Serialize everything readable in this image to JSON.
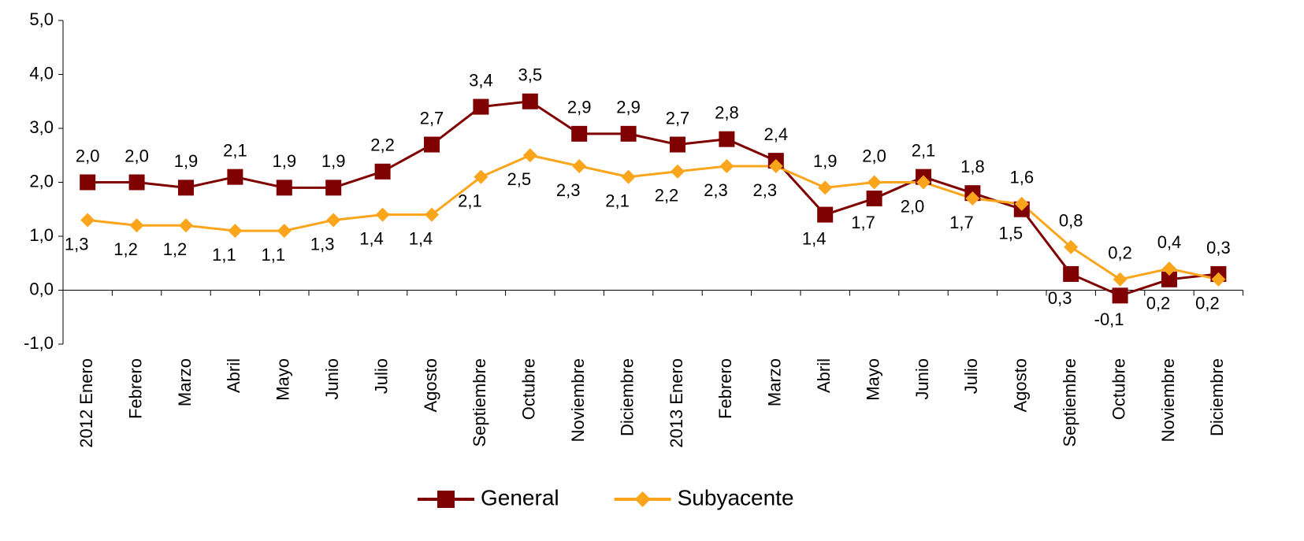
{
  "chart_data": {
    "type": "line",
    "categories": [
      "2012 Enero",
      "Febrero",
      "Marzo",
      "Abril",
      "Mayo",
      "Junio",
      "Julio",
      "Agosto",
      "Septiembre",
      "Octubre",
      "Noviembre",
      "Diciembre",
      "2013 Enero",
      "Febrero",
      "Marzo",
      "Abril",
      "Mayo",
      "Junio",
      "Julio",
      "Agosto",
      "Septiembre",
      "Octubre",
      "Noviembre",
      "Diciembre"
    ],
    "series": [
      {
        "name": "General",
        "color": "#7f0000",
        "marker": "square",
        "values": [
          2.0,
          2.0,
          1.9,
          2.1,
          1.9,
          1.9,
          2.2,
          2.7,
          3.4,
          3.5,
          2.9,
          2.9,
          2.7,
          2.8,
          2.4,
          1.4,
          1.7,
          2.1,
          1.8,
          1.5,
          0.3,
          -0.1,
          0.2,
          0.3
        ],
        "value_labels": [
          "2,0",
          "2,0",
          "1,9",
          "2,1",
          "1,9",
          "1,9",
          "2,2",
          "2,7",
          "3,4",
          "3,5",
          "2,9",
          "2,9",
          "2,7",
          "2,8",
          "2,4",
          "1,4",
          "1,7",
          "2,1",
          "1,8",
          "1,5",
          "0,3",
          "-0,1",
          "0,2",
          "0,3"
        ]
      },
      {
        "name": "Subyacente",
        "color": "#fba51c",
        "marker": "diamond",
        "values": [
          1.3,
          1.2,
          1.2,
          1.1,
          1.1,
          1.3,
          1.4,
          1.4,
          2.1,
          2.5,
          2.3,
          2.1,
          2.2,
          2.3,
          2.3,
          1.9,
          2.0,
          2.0,
          1.7,
          1.6,
          0.8,
          0.2,
          0.4,
          0.2
        ],
        "value_labels": [
          "1,3",
          "1,2",
          "1,2",
          "1,1",
          "1,1",
          "1,3",
          "1,4",
          "1,4",
          "2,1",
          "2,5",
          "2,3",
          "2,1",
          "2,2",
          "2,3",
          "2,3",
          "1,9",
          "2,0",
          "2,0",
          "1,7",
          "1,6",
          "0,8",
          "0,2",
          "0,4",
          "0,2"
        ]
      }
    ],
    "ylim": [
      -1,
      5
    ],
    "yticks": [
      {
        "value": -1,
        "label": "-1,0"
      },
      {
        "value": 0,
        "label": "0,0"
      },
      {
        "value": 1,
        "label": "1,0"
      },
      {
        "value": 2,
        "label": "2,0"
      },
      {
        "value": 3,
        "label": "3,0"
      },
      {
        "value": 4,
        "label": "4,0"
      },
      {
        "value": 5,
        "label": "5,0"
      }
    ],
    "legend": "bottom"
  }
}
